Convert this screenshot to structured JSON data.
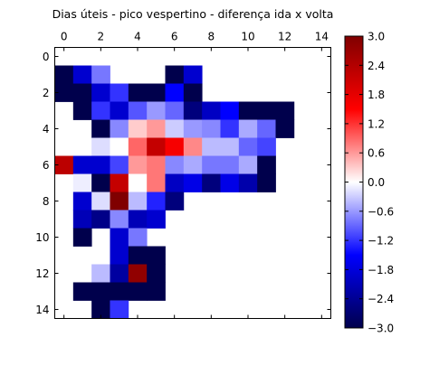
{
  "chart_data": {
    "type": "heatmap",
    "title": "Dias úteis - pico vespertino - diferença ida x volta",
    "x_range": [
      -0.5,
      14.5
    ],
    "y_range": [
      -0.5,
      14.5
    ],
    "x_ticks": [
      0,
      2,
      4,
      6,
      8,
      10,
      12,
      14
    ],
    "y_ticks": [
      0,
      2,
      4,
      6,
      8,
      10,
      12,
      14
    ],
    "x_axis_position": "top",
    "y_axis_inverted": true,
    "grid": false,
    "colormap": "seismic",
    "value_range": [
      -3.0,
      3.0
    ],
    "colorbar_ticks": [
      "3.0",
      "2.4",
      "1.8",
      "1.2",
      "0.6",
      "0.0",
      "−0.6",
      "−1.2",
      "−1.8",
      "−2.4",
      "−3.0"
    ],
    "colorbar_position": "right",
    "rows": [
      [
        null,
        null,
        null,
        null,
        null,
        null,
        null,
        null,
        null,
        null,
        null,
        null,
        null,
        null,
        null
      ],
      [
        -3.0,
        -1.9,
        -0.8,
        null,
        null,
        null,
        -3.0,
        -1.9,
        null,
        null,
        null,
        null,
        null,
        null,
        null
      ],
      [
        -3.0,
        -3.0,
        -1.9,
        -1.2,
        -3.0,
        -3.0,
        -1.5,
        -3.0,
        null,
        null,
        null,
        null,
        null,
        null,
        null
      ],
      [
        null,
        -3.0,
        -1.2,
        -1.9,
        -1.0,
        -0.6,
        -0.9,
        -2.6,
        -2.0,
        -1.5,
        -3.0,
        -3.0,
        -3.0,
        null,
        null
      ],
      [
        null,
        null,
        -3.0,
        -0.7,
        0.3,
        0.6,
        -0.3,
        -0.6,
        -0.7,
        -1.2,
        -0.5,
        -0.9,
        -3.0,
        null,
        null
      ],
      [
        null,
        null,
        -0.2,
        0.0,
        0.9,
        2.2,
        1.6,
        0.7,
        -0.4,
        -0.4,
        -0.9,
        -1.1,
        null,
        null,
        null
      ],
      [
        2.3,
        -1.9,
        -1.9,
        -1.1,
        0.6,
        0.8,
        -0.7,
        -0.5,
        -0.8,
        -0.8,
        -0.5,
        -3.0,
        null,
        null,
        null
      ],
      [
        null,
        -0.1,
        -3.0,
        2.2,
        0.0,
        0.8,
        -2.0,
        -1.7,
        -2.6,
        -1.7,
        -2.2,
        -3.0,
        null,
        null,
        null
      ],
      [
        null,
        -1.9,
        -0.2,
        3.0,
        -0.4,
        -1.3,
        -2.6,
        null,
        null,
        null,
        null,
        null,
        null,
        null,
        null
      ],
      [
        null,
        -2.1,
        -2.5,
        -0.7,
        -2.1,
        -1.9,
        null,
        null,
        null,
        null,
        null,
        null,
        null,
        null,
        null
      ],
      [
        null,
        -3.0,
        null,
        -1.9,
        -0.8,
        null,
        null,
        null,
        null,
        null,
        null,
        null,
        null,
        null,
        null
      ],
      [
        null,
        null,
        null,
        -1.9,
        -3.0,
        -3.0,
        null,
        null,
        null,
        null,
        null,
        null,
        null,
        null,
        null
      ],
      [
        null,
        null,
        -0.4,
        -2.3,
        2.8,
        -3.0,
        null,
        null,
        null,
        null,
        null,
        null,
        null,
        null,
        null
      ],
      [
        null,
        -3.0,
        -3.0,
        -3.0,
        -3.0,
        -3.0,
        null,
        null,
        null,
        null,
        null,
        null,
        null,
        null,
        null
      ],
      [
        null,
        null,
        -3.0,
        -1.2,
        null,
        null,
        null,
        null,
        null,
        null,
        null,
        null,
        null,
        null,
        null
      ]
    ]
  }
}
